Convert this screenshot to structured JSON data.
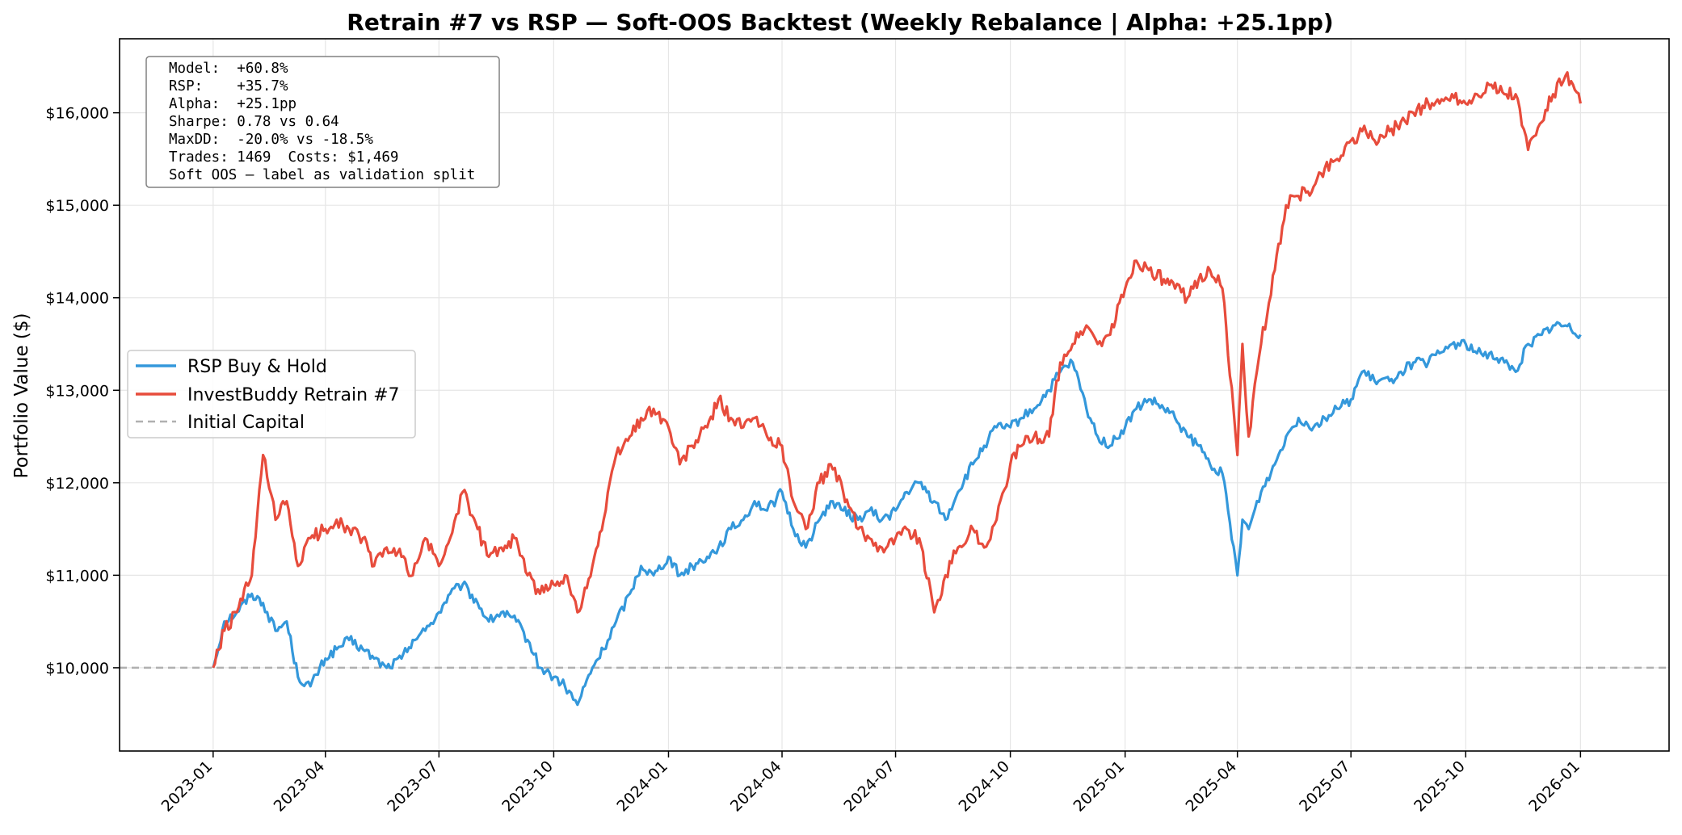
{
  "chart_data": {
    "type": "line",
    "title": "Retrain #7 vs RSP — Soft-OOS Backtest (Weekly Rebalance | Alpha: +25.1pp)",
    "xlabel": "",
    "ylabel": "Portfolio Value ($)",
    "xlim": [
      "2022-10-18",
      "2026-03-13"
    ],
    "ylim": [
      9100,
      16800
    ],
    "x_ticks": [
      "2023-01",
      "2023-04",
      "2023-07",
      "2023-10",
      "2024-01",
      "2024-04",
      "2024-07",
      "2024-10",
      "2025-01",
      "2025-04",
      "2025-07",
      "2025-10",
      "2026-01"
    ],
    "y_ticks": [
      10000,
      11000,
      12000,
      13000,
      14000,
      15000,
      16000
    ],
    "y_tick_labels": [
      "$10,000",
      "$11,000",
      "$12,000",
      "$13,000",
      "$14,000",
      "$15,000",
      "$16,000"
    ],
    "grid": true,
    "legend_position": "center-left",
    "reference_line": {
      "name": "Initial Capital",
      "value": 10000,
      "color": "#b0b0b0",
      "style": "dashed"
    },
    "stats_box": [
      "Model:  +60.8%",
      "RSP:    +35.7%",
      "Alpha:  +25.1pp",
      "Sharpe: 0.78 vs 0.64",
      "MaxDD:  -20.0% vs -18.5%",
      "Trades: 1469  Costs: $1,469",
      "Soft OOS — label as validation split"
    ],
    "series": [
      {
        "name": "RSP Buy & Hold",
        "color": "#3498db",
        "x": [
          "2023-01-01",
          "2023-01-10",
          "2023-01-20",
          "2023-02-01",
          "2023-02-10",
          "2023-02-20",
          "2023-03-01",
          "2023-03-10",
          "2023-03-20",
          "2023-04-01",
          "2023-04-10",
          "2023-04-20",
          "2023-05-01",
          "2023-05-10",
          "2023-05-20",
          "2023-06-01",
          "2023-06-10",
          "2023-06-20",
          "2023-07-01",
          "2023-07-10",
          "2023-07-20",
          "2023-08-01",
          "2023-08-10",
          "2023-08-20",
          "2023-09-01",
          "2023-09-10",
          "2023-09-20",
          "2023-10-01",
          "2023-10-10",
          "2023-10-20",
          "2023-11-01",
          "2023-11-10",
          "2023-11-20",
          "2023-12-01",
          "2023-12-10",
          "2023-12-20",
          "2024-01-01",
          "2024-01-10",
          "2024-01-20",
          "2024-02-01",
          "2024-02-10",
          "2024-02-20",
          "2024-03-01",
          "2024-03-10",
          "2024-03-20",
          "2024-04-01",
          "2024-04-10",
          "2024-04-20",
          "2024-05-01",
          "2024-05-10",
          "2024-05-20",
          "2024-06-01",
          "2024-06-10",
          "2024-06-20",
          "2024-07-01",
          "2024-07-10",
          "2024-07-20",
          "2024-08-01",
          "2024-08-10",
          "2024-08-20",
          "2024-09-01",
          "2024-09-10",
          "2024-09-20",
          "2024-10-01",
          "2024-10-10",
          "2024-10-20",
          "2024-11-01",
          "2024-11-10",
          "2024-11-20",
          "2024-12-01",
          "2024-12-10",
          "2024-12-20",
          "2025-01-01",
          "2025-01-10",
          "2025-01-20",
          "2025-02-01",
          "2025-02-10",
          "2025-02-20",
          "2025-03-01",
          "2025-03-10",
          "2025-03-20",
          "2025-04-01",
          "2025-04-05",
          "2025-04-10",
          "2025-04-20",
          "2025-05-01",
          "2025-05-10",
          "2025-05-20",
          "2025-06-01",
          "2025-06-10",
          "2025-06-20",
          "2025-07-01",
          "2025-07-10",
          "2025-07-20",
          "2025-08-01",
          "2025-08-10",
          "2025-08-20",
          "2025-09-01",
          "2025-09-10",
          "2025-09-20",
          "2025-10-01",
          "2025-10-10",
          "2025-10-20",
          "2025-11-01",
          "2025-11-10",
          "2025-11-20",
          "2025-12-01",
          "2025-12-10",
          "2025-12-20",
          "2026-01-01"
        ],
        "values": [
          10000,
          10500,
          10600,
          10800,
          10700,
          10400,
          10500,
          9900,
          9800,
          10100,
          10200,
          10300,
          10200,
          10100,
          10000,
          10100,
          10300,
          10400,
          10600,
          10800,
          10900,
          10700,
          10500,
          10600,
          10500,
          10300,
          10000,
          9900,
          9800,
          9600,
          10000,
          10200,
          10500,
          10800,
          11100,
          11000,
          11200,
          11000,
          11100,
          11200,
          11300,
          11500,
          11600,
          11800,
          11700,
          11900,
          11500,
          11300,
          11600,
          11800,
          11700,
          11600,
          11700,
          11600,
          11700,
          11900,
          12000,
          11800,
          11600,
          11900,
          12200,
          12400,
          12600,
          12600,
          12700,
          12800,
          13000,
          13200,
          13300,
          12800,
          12500,
          12400,
          12600,
          12800,
          12900,
          12800,
          12700,
          12500,
          12400,
          12200,
          12100,
          11000,
          11600,
          11500,
          11900,
          12200,
          12500,
          12700,
          12600,
          12700,
          12800,
          12900,
          13200,
          13100,
          13100,
          13200,
          13300,
          13300,
          13400,
          13500,
          13500,
          13400,
          13400,
          13300,
          13200,
          13500,
          13600,
          13700,
          13700,
          13600
        ]
      },
      {
        "name": "InvestBuddy Retrain #7",
        "color": "#e74c3c",
        "x": [
          "2023-01-01",
          "2023-01-10",
          "2023-01-20",
          "2023-02-01",
          "2023-02-10",
          "2023-02-20",
          "2023-03-01",
          "2023-03-10",
          "2023-03-20",
          "2023-04-01",
          "2023-04-10",
          "2023-04-20",
          "2023-05-01",
          "2023-05-10",
          "2023-05-20",
          "2023-06-01",
          "2023-06-10",
          "2023-06-20",
          "2023-07-01",
          "2023-07-10",
          "2023-07-20",
          "2023-08-01",
          "2023-08-10",
          "2023-08-20",
          "2023-09-01",
          "2023-09-10",
          "2023-09-20",
          "2023-10-01",
          "2023-10-10",
          "2023-10-20",
          "2023-11-01",
          "2023-11-10",
          "2023-11-20",
          "2023-12-01",
          "2023-12-10",
          "2023-12-20",
          "2024-01-01",
          "2024-01-10",
          "2024-01-20",
          "2024-02-01",
          "2024-02-10",
          "2024-02-20",
          "2024-03-01",
          "2024-03-10",
          "2024-03-20",
          "2024-04-01",
          "2024-04-10",
          "2024-04-20",
          "2024-05-01",
          "2024-05-10",
          "2024-05-20",
          "2024-06-01",
          "2024-06-10",
          "2024-06-20",
          "2024-07-01",
          "2024-07-10",
          "2024-07-20",
          "2024-08-01",
          "2024-08-10",
          "2024-08-20",
          "2024-09-01",
          "2024-09-10",
          "2024-09-20",
          "2024-10-01",
          "2024-10-10",
          "2024-10-20",
          "2024-11-01",
          "2024-11-10",
          "2024-11-20",
          "2024-12-01",
          "2024-12-10",
          "2024-12-20",
          "2025-01-01",
          "2025-01-10",
          "2025-01-20",
          "2025-02-01",
          "2025-02-10",
          "2025-02-20",
          "2025-03-01",
          "2025-03-10",
          "2025-03-20",
          "2025-04-01",
          "2025-04-05",
          "2025-04-10",
          "2025-04-20",
          "2025-05-01",
          "2025-05-10",
          "2025-05-20",
          "2025-06-01",
          "2025-06-10",
          "2025-06-20",
          "2025-07-01",
          "2025-07-10",
          "2025-07-20",
          "2025-08-01",
          "2025-08-10",
          "2025-08-20",
          "2025-09-01",
          "2025-09-10",
          "2025-09-20",
          "2025-10-01",
          "2025-10-10",
          "2025-10-20",
          "2025-11-01",
          "2025-11-10",
          "2025-11-20",
          "2025-12-01",
          "2025-12-10",
          "2025-12-20",
          "2026-01-01"
        ],
        "values": [
          10000,
          10400,
          10600,
          11000,
          12300,
          11600,
          11800,
          11100,
          11400,
          11500,
          11600,
          11500,
          11400,
          11100,
          11300,
          11200,
          11000,
          11400,
          11100,
          11400,
          11900,
          11500,
          11200,
          11300,
          11400,
          11000,
          10800,
          10900,
          11000,
          10600,
          11100,
          11600,
          12300,
          12500,
          12700,
          12800,
          12600,
          12200,
          12400,
          12600,
          12900,
          12700,
          12600,
          12700,
          12500,
          12400,
          11800,
          11500,
          12000,
          12200,
          11900,
          11500,
          11400,
          11300,
          11400,
          11500,
          11400,
          10600,
          11000,
          11300,
          11500,
          11300,
          11600,
          12200,
          12400,
          12500,
          12500,
          13300,
          13500,
          13700,
          13500,
          13600,
          14100,
          14400,
          14300,
          14200,
          14100,
          14000,
          14200,
          14300,
          14100,
          12300,
          13500,
          12500,
          13500,
          14300,
          15000,
          15100,
          15200,
          15400,
          15500,
          15700,
          15800,
          15700,
          15800,
          15900,
          16000,
          16100,
          16100,
          16200,
          16100,
          16200,
          16300,
          16200,
          16200,
          15600,
          15900,
          16200,
          16400,
          16100
        ]
      }
    ]
  }
}
